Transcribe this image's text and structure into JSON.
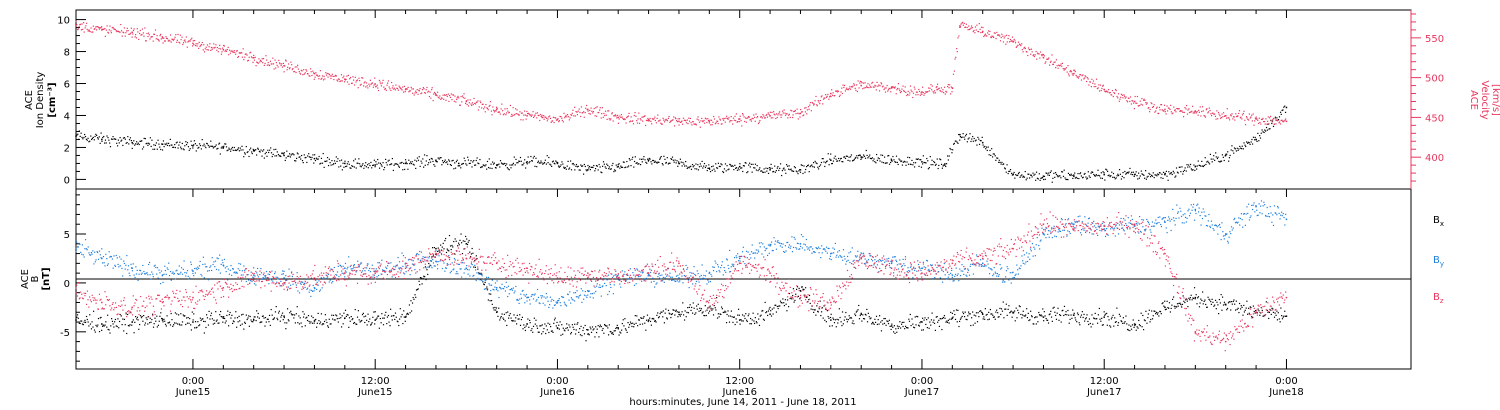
{
  "chart_data": [
    {
      "type": "scatter",
      "panel": "ion-density-velocity",
      "ylabel_lines": [
        "ACE",
        "Ion Density",
        "[cm⁻³]"
      ],
      "ylim": [
        -0.6,
        10.6
      ],
      "yticks": [
        0,
        2,
        4,
        6,
        8,
        10
      ],
      "y2label_lines": [
        "ACE",
        "Velocity",
        "[km/s]"
      ],
      "y2lim": [
        360,
        585
      ],
      "y2ticks": [
        400,
        450,
        500,
        550
      ],
      "grid": false,
      "series": [
        {
          "key": "density",
          "axis": "left",
          "color": "#000000",
          "x": [
            -7.7,
            -6,
            -4,
            -2,
            0,
            2,
            4,
            6,
            8,
            10,
            12,
            14,
            16,
            17.5,
            20,
            22,
            24,
            26,
            28,
            30,
            32,
            34,
            36,
            38,
            40,
            42,
            44,
            46,
            48,
            49.5,
            50.5,
            52,
            54,
            56,
            58,
            60,
            62,
            64,
            66,
            68,
            70,
            72
          ],
          "values": [
            2.7,
            2.5,
            2.3,
            2.2,
            2.1,
            2.0,
            1.8,
            1.5,
            1.3,
            1.0,
            0.9,
            1.0,
            1.2,
            1.0,
            0.9,
            1.1,
            1.0,
            0.6,
            0.8,
            1.2,
            1.0,
            0.7,
            0.8,
            0.6,
            0.6,
            1.2,
            1.4,
            1.2,
            1.1,
            0.9,
            2.8,
            2.3,
            0.3,
            0.2,
            0.2,
            0.3,
            0.3,
            0.3,
            0.8,
            1.5,
            2.5,
            4.5
          ]
        },
        {
          "key": "velocity",
          "axis": "right",
          "color": "#e8375e",
          "x": [
            -7.7,
            -6,
            -4,
            -2,
            0,
            2,
            4,
            6,
            8,
            10,
            12,
            14,
            16,
            18,
            20,
            22,
            23,
            24,
            26,
            28,
            30,
            32,
            34,
            36,
            38,
            40,
            42,
            44,
            46,
            48,
            49,
            50,
            50.5,
            52,
            54,
            56,
            58,
            60,
            62,
            64,
            66,
            68,
            70,
            72
          ],
          "values": [
            565,
            560,
            557,
            550,
            543,
            535,
            525,
            515,
            505,
            498,
            492,
            485,
            478,
            470,
            460,
            452,
            450,
            447,
            460,
            450,
            447,
            445,
            445,
            448,
            452,
            455,
            480,
            490,
            487,
            482,
            485,
            487,
            565,
            558,
            545,
            525,
            505,
            485,
            470,
            460,
            458,
            452,
            448,
            445
          ]
        }
      ]
    },
    {
      "type": "scatter",
      "panel": "imf-components",
      "ylabel_lines": [
        "ACE",
        "B",
        "[nT]"
      ],
      "ylim": [
        -8.8,
        9.6
      ],
      "yticks": [
        -5,
        0,
        5
      ],
      "zero_line": true,
      "grid": false,
      "series": [
        {
          "key": "bx",
          "name": "B",
          "sub": "x",
          "color": "#000000",
          "x": [
            -7.7,
            -6,
            -4,
            -2,
            0,
            2,
            4,
            6,
            8,
            10,
            12,
            14,
            16,
            18,
            20,
            22,
            24,
            26,
            28,
            30,
            32,
            34,
            36,
            38,
            40,
            42,
            44,
            46,
            48,
            50,
            52,
            54,
            56,
            58,
            60,
            62,
            64,
            66,
            68,
            70,
            72
          ],
          "values": [
            -3.8,
            -4.2,
            -4.0,
            -3.8,
            -4.0,
            -3.6,
            -3.8,
            -3.4,
            -3.9,
            -3.6,
            -3.8,
            -3.5,
            3.5,
            4.0,
            -3.0,
            -4.2,
            -4.6,
            -4.8,
            -4.6,
            -3.8,
            -3.0,
            -2.5,
            -3.8,
            -3.2,
            -0.8,
            -3.8,
            -3.2,
            -4.4,
            -4.0,
            -3.6,
            -3.2,
            -3.0,
            -3.5,
            -3.3,
            -3.5,
            -4.2,
            -2.5,
            -1.5,
            -2.2,
            -3.0,
            -3.4
          ]
        },
        {
          "key": "by",
          "name": "B",
          "sub": "y",
          "color": "#1f7fdc",
          "x": [
            -7.7,
            -6,
            -4,
            -2,
            0,
            2,
            4,
            6,
            8,
            10,
            12,
            14,
            16,
            18,
            20,
            22,
            24,
            26,
            28,
            30,
            32,
            34,
            36,
            38,
            40,
            42,
            44,
            46,
            48,
            50,
            52,
            54,
            56,
            58,
            60,
            62,
            64,
            66,
            68,
            70,
            72
          ],
          "values": [
            3.5,
            2.5,
            1.5,
            0.8,
            1.2,
            1.8,
            0.8,
            0.5,
            -0.5,
            1.5,
            1.2,
            2.0,
            2.2,
            1.5,
            -0.5,
            -1.5,
            -2.0,
            -0.8,
            0.5,
            0.8,
            0.5,
            1.0,
            2.5,
            3.8,
            4.0,
            3.0,
            2.5,
            2.0,
            1.5,
            0.8,
            2.0,
            0.5,
            5.0,
            6.0,
            5.5,
            5.8,
            6.2,
            7.5,
            5.0,
            7.8,
            6.5
          ]
        },
        {
          "key": "bz",
          "name": "B",
          "sub": "z",
          "color": "#e8375e",
          "x": [
            -7.7,
            -6,
            -4,
            -2,
            0,
            2,
            4,
            6,
            8,
            10,
            12,
            14,
            16,
            18,
            20,
            22,
            24,
            26,
            28,
            30,
            32,
            34,
            36,
            38,
            40,
            42,
            44,
            46,
            48,
            50,
            52,
            54,
            56,
            58,
            60,
            62,
            64,
            66,
            68,
            70,
            72
          ],
          "values": [
            -1.0,
            -2.0,
            -2.5,
            -2.0,
            -1.5,
            -0.5,
            0.5,
            0.0,
            0.5,
            1.0,
            1.0,
            1.5,
            3.0,
            2.5,
            2.0,
            1.5,
            0.5,
            1.0,
            0.5,
            1.0,
            2.0,
            -2.5,
            2.0,
            1.0,
            -1.5,
            -2.0,
            2.5,
            1.5,
            1.0,
            2.0,
            2.5,
            3.5,
            6.0,
            5.5,
            5.8,
            6.0,
            3.0,
            -5.0,
            -6.0,
            -3.0,
            -1.5
          ]
        }
      ]
    }
  ],
  "x_axis": {
    "xlim": [
      -7.7,
      80.2
    ],
    "ticks": [
      {
        "x": 0,
        "time": "0:00",
        "date": "June15"
      },
      {
        "x": 12,
        "time": "12:00",
        "date": "June15"
      },
      {
        "x": 24,
        "time": "0:00",
        "date": "June16"
      },
      {
        "x": 36,
        "time": "12:00",
        "date": "June16"
      },
      {
        "x": 48,
        "time": "0:00",
        "date": "June17"
      },
      {
        "x": 60,
        "time": "12:00",
        "date": "June17"
      },
      {
        "x": 72,
        "time": "0:00",
        "date": "June18"
      }
    ],
    "title": "hours:minutes, June 14, 2011 - June 18, 2011"
  }
}
